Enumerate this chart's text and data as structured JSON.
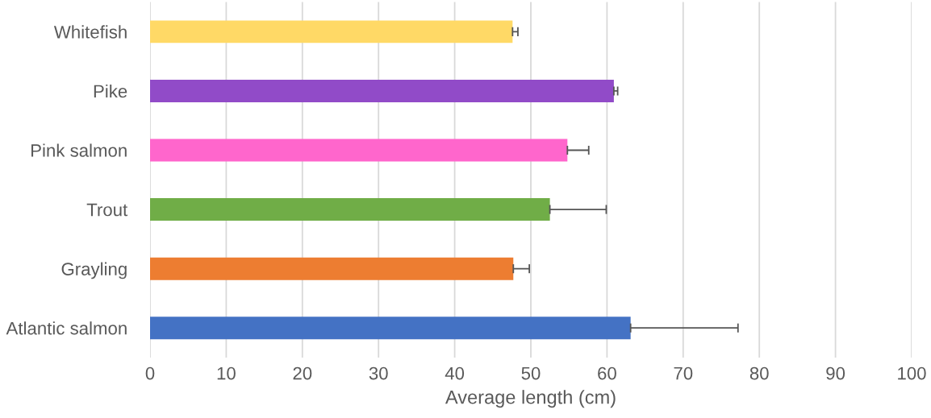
{
  "chart_data": {
    "type": "bar",
    "orientation": "horizontal",
    "xlabel": "Average length (cm)",
    "categories": [
      "Whitefish",
      "Pike",
      "Pink salmon",
      "Trout",
      "Grayling",
      "Atlantic salmon"
    ],
    "values": [
      47.6,
      60.9,
      54.8,
      52.5,
      47.7,
      63.1
    ],
    "colors": [
      "#ffd966",
      "#914bc8",
      "#ff66cc",
      "#70ad47",
      "#ed7d31",
      "#4472c4"
    ],
    "errors": [
      [
        47.6,
        48.3
      ],
      [
        60.9,
        61.4
      ],
      [
        54.8,
        57.6
      ],
      [
        52.5,
        59.9
      ],
      [
        47.7,
        49.8
      ],
      [
        63.1,
        77.2
      ]
    ],
    "xlim": [
      0,
      100
    ],
    "xticks": [
      0,
      10,
      20,
      30,
      40,
      50,
      60,
      70,
      80,
      90,
      100
    ],
    "grid": "x"
  }
}
